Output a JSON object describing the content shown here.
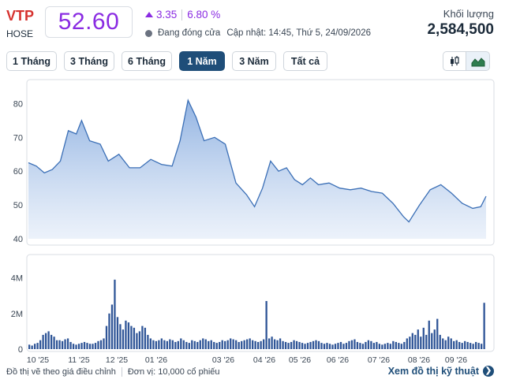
{
  "header": {
    "ticker": "VTP",
    "exchange": "HOSE",
    "price": "52.60",
    "change": "3.35",
    "change_pct": "6.80 %",
    "status": "Đang đóng cửa",
    "updated": "Cập nhật: 14:45, Thứ 5, 24/09/2026",
    "volume_label": "Khối lượng",
    "volume_value": "2,584,500"
  },
  "tabs": [
    {
      "label": "1 Tháng",
      "active": false
    },
    {
      "label": "3 Tháng",
      "active": false
    },
    {
      "label": "6 Tháng",
      "active": false
    },
    {
      "label": "1 Năm",
      "active": true
    },
    {
      "label": "3 Năm",
      "active": false
    },
    {
      "label": "Tất cả",
      "active": false
    }
  ],
  "chart_type_buttons": [
    "candlestick-icon",
    "area-chart-icon"
  ],
  "colors": {
    "accent_purple": "#8a2be2",
    "ticker_red": "#d6322f",
    "navy": "#1f4e79",
    "line_blue": "#3b6fb6",
    "volume_bar": "#2f5597"
  },
  "chart_data": [
    {
      "type": "area",
      "ylim": [
        40,
        85
      ],
      "yticks": [
        40,
        50,
        60,
        70,
        80
      ],
      "grid": false,
      "x_labels": [
        "10 '25",
        "11 '25",
        "12 '25",
        "01 '26",
        "03 '26",
        "04 '26",
        "05 '26",
        "06 '26",
        "07 '26",
        "08 '26",
        "09 '26"
      ],
      "points": [
        [
          0,
          62.5
        ],
        [
          3,
          61.5
        ],
        [
          6,
          59.5
        ],
        [
          9,
          60.5
        ],
        [
          12,
          63.0
        ],
        [
          15,
          72.0
        ],
        [
          18,
          71.0
        ],
        [
          20,
          75.0
        ],
        [
          23,
          69.0
        ],
        [
          27,
          68.0
        ],
        [
          30,
          63.0
        ],
        [
          34,
          65.0
        ],
        [
          38,
          61.0
        ],
        [
          42,
          61.0
        ],
        [
          46,
          63.5
        ],
        [
          50,
          62.0
        ],
        [
          54,
          61.5
        ],
        [
          57,
          69.0
        ],
        [
          60,
          81.0
        ],
        [
          63,
          76.0
        ],
        [
          66,
          69.0
        ],
        [
          70,
          70.0
        ],
        [
          74,
          68.0
        ],
        [
          78,
          56.5
        ],
        [
          82,
          53.0
        ],
        [
          85,
          49.5
        ],
        [
          88,
          55.0
        ],
        [
          91,
          63.0
        ],
        [
          94,
          60.0
        ],
        [
          97,
          61.0
        ],
        [
          100,
          57.5
        ],
        [
          103,
          56.0
        ],
        [
          106,
          58.0
        ],
        [
          109,
          56.0
        ],
        [
          113,
          56.5
        ],
        [
          117,
          55.0
        ],
        [
          121,
          54.5
        ],
        [
          125,
          55.0
        ],
        [
          129,
          54.0
        ],
        [
          133,
          53.5
        ],
        [
          137,
          50.5
        ],
        [
          141,
          46.5
        ],
        [
          143,
          45.0
        ],
        [
          147,
          50.0
        ],
        [
          151,
          54.5
        ],
        [
          155,
          56.0
        ],
        [
          159,
          53.5
        ],
        [
          163,
          50.5
        ],
        [
          167,
          49.0
        ],
        [
          170,
          49.5
        ],
        [
          172,
          52.6
        ]
      ]
    },
    {
      "type": "bar",
      "series_name": "Khối lượng",
      "ylim": [
        0,
        5
      ],
      "yticks": [
        "0",
        "2M",
        "4M"
      ],
      "volumes_millions": [
        0.25,
        0.2,
        0.3,
        0.35,
        0.5,
        0.8,
        0.9,
        1.0,
        0.8,
        0.7,
        0.5,
        0.5,
        0.45,
        0.55,
        0.6,
        0.4,
        0.3,
        0.25,
        0.3,
        0.35,
        0.4,
        0.35,
        0.3,
        0.3,
        0.35,
        0.45,
        0.5,
        0.6,
        1.3,
        2.0,
        2.5,
        3.9,
        1.8,
        1.4,
        1.1,
        1.6,
        1.5,
        1.3,
        1.2,
        0.9,
        1.0,
        1.3,
        1.2,
        0.8,
        0.6,
        0.5,
        0.45,
        0.5,
        0.6,
        0.5,
        0.45,
        0.55,
        0.5,
        0.4,
        0.45,
        0.6,
        0.5,
        0.4,
        0.35,
        0.5,
        0.45,
        0.4,
        0.5,
        0.6,
        0.55,
        0.45,
        0.5,
        0.4,
        0.35,
        0.4,
        0.5,
        0.45,
        0.5,
        0.6,
        0.55,
        0.5,
        0.4,
        0.45,
        0.5,
        0.55,
        0.6,
        0.5,
        0.45,
        0.4,
        0.45,
        0.55,
        2.7,
        0.6,
        0.7,
        0.55,
        0.5,
        0.6,
        0.45,
        0.4,
        0.35,
        0.4,
        0.5,
        0.45,
        0.4,
        0.35,
        0.3,
        0.35,
        0.4,
        0.45,
        0.5,
        0.45,
        0.35,
        0.3,
        0.35,
        0.3,
        0.25,
        0.3,
        0.35,
        0.4,
        0.3,
        0.35,
        0.45,
        0.5,
        0.55,
        0.4,
        0.35,
        0.3,
        0.4,
        0.5,
        0.45,
        0.35,
        0.4,
        0.3,
        0.25,
        0.3,
        0.35,
        0.3,
        0.45,
        0.4,
        0.35,
        0.3,
        0.4,
        0.6,
        0.7,
        0.9,
        0.8,
        1.1,
        0.7,
        1.2,
        0.8,
        1.6,
        0.9,
        1.1,
        1.7,
        0.8,
        0.6,
        0.5,
        0.7,
        0.6,
        0.45,
        0.5,
        0.4,
        0.35,
        0.45,
        0.4,
        0.35,
        0.3,
        0.4,
        0.35,
        0.3,
        2.6
      ]
    }
  ],
  "footer": {
    "note": "Đồ thị vẽ theo giá điều chỉnh",
    "unit": "Đơn vị: 10,000 cổ phiếu",
    "link": "Xem đồ thị kỹ thuật"
  }
}
